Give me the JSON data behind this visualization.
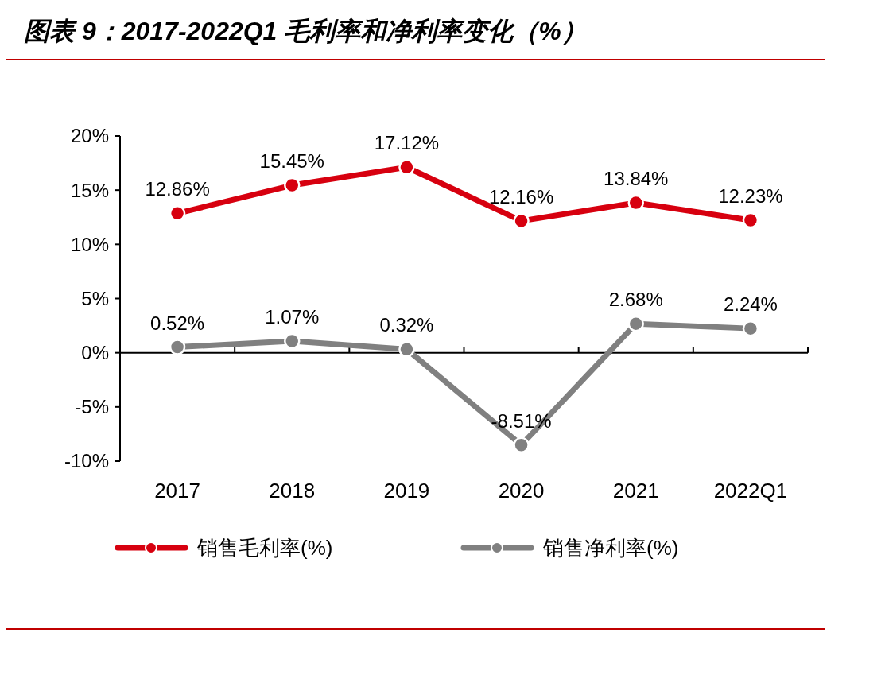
{
  "chart_data": {
    "type": "line",
    "title": "图表 9：2017-2022Q1 毛利率和净利率变化（%）",
    "categories": [
      "2017",
      "2018",
      "2019",
      "2020",
      "2021",
      "2022Q1"
    ],
    "series": [
      {
        "name": "销售毛利率(%)",
        "color": "#d7000f",
        "values": [
          12.86,
          15.45,
          17.12,
          12.16,
          13.84,
          12.23
        ],
        "value_labels": [
          "12.86%",
          "15.45%",
          "17.12%",
          "12.16%",
          "13.84%",
          "12.23%"
        ]
      },
      {
        "name": "销售净利率(%)",
        "color": "#808080",
        "values": [
          0.52,
          1.07,
          0.32,
          -8.51,
          2.68,
          2.24
        ],
        "value_labels": [
          "0.52%",
          "1.07%",
          "0.32%",
          "-8.51%",
          "2.68%",
          "2.24%"
        ]
      }
    ],
    "ylim": [
      -10,
      20
    ],
    "yticks": [
      {
        "value": -10,
        "label": "-10%"
      },
      {
        "value": -5,
        "label": "-5%"
      },
      {
        "value": 0,
        "label": "0%"
      },
      {
        "value": 5,
        "label": "5%"
      },
      {
        "value": 10,
        "label": "10%"
      },
      {
        "value": 15,
        "label": "15%"
      },
      {
        "value": 20,
        "label": "20%"
      }
    ],
    "legend": "bottom",
    "marker": "circle",
    "line_style": "solid"
  }
}
